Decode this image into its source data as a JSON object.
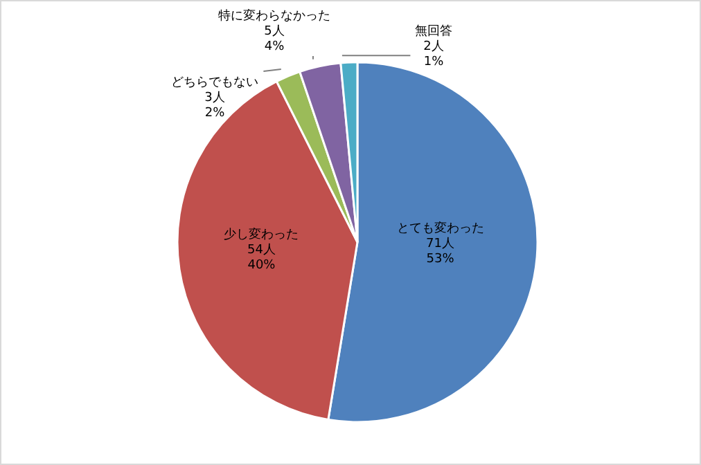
{
  "chart_data": {
    "type": "pie",
    "categories": [
      "とても変わった",
      "少し変わった",
      "どちらでもない",
      "特に変わらなかった",
      "無回答"
    ],
    "values": [
      71,
      54,
      3,
      5,
      2
    ],
    "colors": [
      "#4f81bd",
      "#c0504d",
      "#9bbb59",
      "#8064a2",
      "#4bacc6"
    ],
    "value_labels": [
      "71人\n53%",
      "54人\n40%",
      "3人\n2%",
      "5人\n4%",
      "2人\n1%"
    ],
    "legend": false
  }
}
